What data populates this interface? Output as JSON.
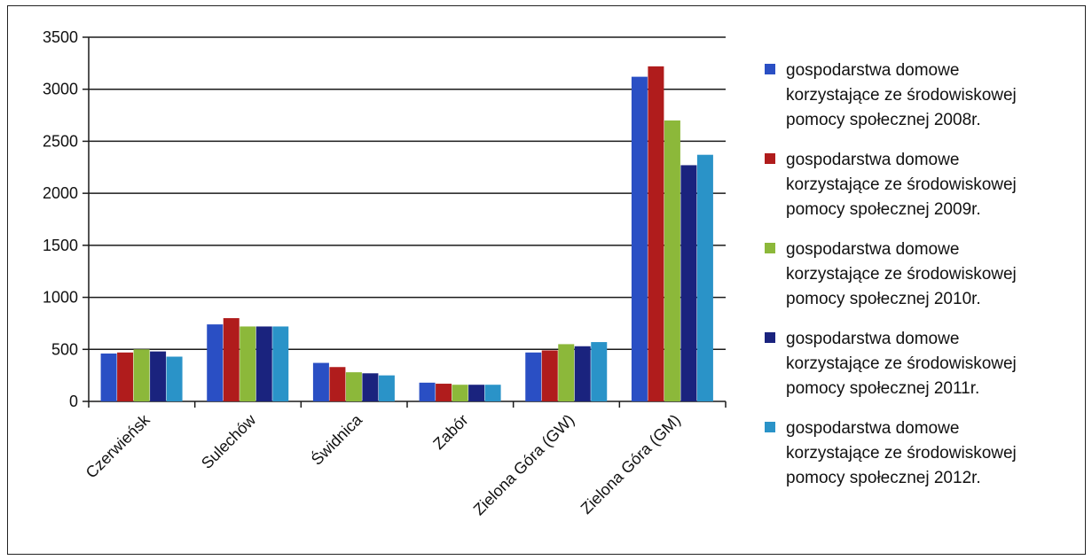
{
  "chart_data": {
    "type": "bar",
    "title": "",
    "xlabel": "",
    "ylabel": "",
    "ylim": [
      0,
      3500
    ],
    "yticks": [
      0,
      500,
      1000,
      1500,
      2000,
      2500,
      3000,
      3500
    ],
    "grid": true,
    "legend_position": "right",
    "categories": [
      "Czerwieńsk",
      "Sulechów",
      "Świdnica",
      "Zabór",
      "Zielona Góra (GW)",
      "Zielona Góra (GM)"
    ],
    "series": [
      {
        "name": "gospodarstwa domowe korzystające ze środowiskowej pomocy społecznej 2008r.",
        "color": "#2a4fc4",
        "values": [
          460,
          740,
          370,
          180,
          470,
          3120
        ]
      },
      {
        "name": "gospodarstwa domowe korzystające ze środowiskowej pomocy społecznej 2009r.",
        "color": "#b01c1c",
        "values": [
          470,
          800,
          330,
          170,
          490,
          3220
        ]
      },
      {
        "name": "gospodarstwa domowe korzystające ze środowiskowej pomocy społecznej 2010r.",
        "color": "#8cb83a",
        "values": [
          500,
          720,
          280,
          160,
          550,
          2700
        ]
      },
      {
        "name": "gospodarstwa domowe korzystające ze środowiskowej pomocy społecznej 2011r.",
        "color": "#1a237e",
        "values": [
          480,
          720,
          270,
          160,
          530,
          2270
        ]
      },
      {
        "name": "gospodarstwa domowe korzystające ze środowiskowej pomocy społecznej 2012r.",
        "color": "#2a93c8",
        "values": [
          430,
          720,
          250,
          160,
          570,
          2370
        ]
      }
    ],
    "legend_lines": [
      [
        "gospodarstwa domowe",
        "korzystające ze środowiskowej",
        "pomocy społecznej 2008r."
      ],
      [
        "gospodarstwa domowe",
        "korzystające ze środowiskowej",
        "pomocy społecznej 2009r."
      ],
      [
        "gospodarstwa domowe",
        "korzystające ze środowiskowej",
        "pomocy społecznej 2010r."
      ],
      [
        "gospodarstwa domowe",
        "korzystające ze środowiskowej",
        "pomocy społecznej 2011r."
      ],
      [
        "gospodarstwa domowe",
        "korzystające ze środowiskowej",
        "pomocy społecznej 2012r."
      ]
    ]
  }
}
